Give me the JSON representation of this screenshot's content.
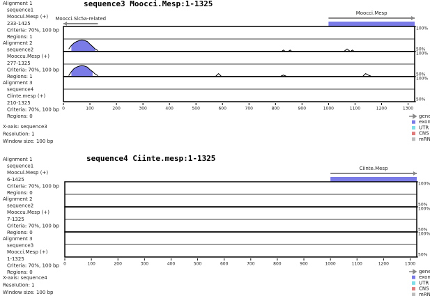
{
  "chart_data": [
    {
      "type": "vista",
      "title": "sequence3 Moocci.Mesp:1-1325",
      "xlim": [
        0,
        1325
      ],
      "xticks": [
        0,
        100,
        200,
        300,
        400,
        500,
        600,
        700,
        800,
        900,
        1000,
        1100,
        1200,
        1300
      ],
      "ylim": [
        50,
        100
      ],
      "yticks": [
        {
          "value": 100,
          "label": "100%"
        },
        {
          "value": 50,
          "label": "50%"
        }
      ],
      "midline": 75,
      "genes": [
        {
          "name": "Moocci.Slc5a-related",
          "start": 0,
          "end": 130,
          "strand": "-"
        },
        {
          "name": "Moocci.Mesp",
          "start": 1000,
          "end": 1325,
          "strand": "+"
        }
      ],
      "exons": [
        {
          "start": 1000,
          "end": 1325
        }
      ],
      "alignments": [
        {
          "labels": [
            "Alignment 1",
            "sequence1",
            "Moocul.Mesp (+)",
            "233-1425",
            "Criteria: 70%, 100 bp",
            "Regions: 1"
          ],
          "x": [
            20,
            30,
            40,
            50,
            60,
            70,
            80,
            90,
            100,
            110,
            120,
            130,
            null,
            825,
            830,
            835,
            null,
            850,
            855,
            860,
            null,
            1060,
            1070,
            1080,
            null,
            1085,
            1090,
            1095
          ],
          "values": [
            55,
            62,
            67,
            70,
            72,
            73,
            72,
            70,
            65,
            60,
            55,
            52,
            null,
            51,
            53,
            51,
            null,
            51,
            53,
            51,
            null,
            51,
            55,
            51,
            null,
            51,
            53,
            51
          ],
          "regions": [
            {
              "start": 30,
              "end": 120
            }
          ]
        },
        {
          "labels": [
            "Alignment 2",
            "sequence2",
            "Mooccu.Mesp (+)",
            "277-1325",
            "Criteria: 70%, 100 bp",
            "Regions: 1"
          ],
          "x": [
            20,
            30,
            40,
            50,
            60,
            70,
            80,
            90,
            100,
            110,
            120,
            130,
            null,
            575,
            585,
            595,
            null,
            820,
            830,
            840,
            null,
            1130,
            1140,
            1150,
            1160
          ],
          "values": [
            52,
            60,
            66,
            69,
            71,
            72,
            71,
            69,
            64,
            60,
            55,
            52,
            null,
            51,
            56,
            51,
            null,
            51,
            53,
            51,
            null,
            51,
            56,
            53,
            51
          ],
          "regions": [
            {
              "start": 30,
              "end": 110
            }
          ]
        },
        {
          "labels": [
            "Alignment 3",
            "sequence4",
            "Ciinte.mesp (+)",
            "210-1325",
            "Criteria: 70%, 100 bp",
            "Regions: 0"
          ],
          "x": [],
          "values": [],
          "regions": []
        }
      ],
      "legend": [
        {
          "name": "gene",
          "color": "#888888"
        },
        {
          "name": "exon",
          "color": "#7b7be8"
        },
        {
          "name": "UTR",
          "color": "#7fdde8"
        },
        {
          "name": "CNS",
          "color": "#e07b7b"
        },
        {
          "name": "mRNA",
          "color": "#bbbbbb"
        }
      ],
      "footer": [
        "X-axis: sequence3",
        "Resolution: 1",
        "Window size: 100 bp"
      ]
    },
    {
      "type": "vista",
      "title": "sequence4 Ciinte.mesp:1-1325",
      "xlim": [
        0,
        1325
      ],
      "xticks": [
        0,
        100,
        200,
        300,
        400,
        500,
        600,
        700,
        800,
        900,
        1000,
        1100,
        1200,
        1300
      ],
      "ylim": [
        50,
        100
      ],
      "yticks": [
        {
          "value": 100,
          "label": "100%"
        },
        {
          "value": 50,
          "label": "50%"
        }
      ],
      "midline": 75,
      "genes": [
        {
          "name": "Ciinte.Mesp",
          "start": 1000,
          "end": 1325,
          "strand": "+"
        }
      ],
      "exons": [
        {
          "start": 1000,
          "end": 1325
        }
      ],
      "alignments": [
        {
          "labels": [
            "Alignment 1",
            "sequence1",
            "Moocul.Mesp (+)",
            "6-1425",
            "Criteria: 70%, 100 bp",
            "Regions: 0"
          ],
          "x": [],
          "values": [],
          "regions": []
        },
        {
          "labels": [
            "Alignment 2",
            "sequence2",
            "Mooccu.Mesp (+)",
            "7-1325",
            "Criteria: 70%, 100 bp",
            "Regions: 0"
          ],
          "x": [],
          "values": [],
          "regions": []
        },
        {
          "labels": [
            "Alignment 3",
            "sequence3",
            "Moocci.Mesp (+)",
            "1-1325",
            "Criteria: 70%, 100 bp",
            "Regions: 0"
          ],
          "x": [],
          "values": [],
          "regions": []
        }
      ],
      "legend": [
        {
          "name": "gene",
          "color": "#888888"
        },
        {
          "name": "exon",
          "color": "#7b7be8"
        },
        {
          "name": "UTR",
          "color": "#7fdde8"
        },
        {
          "name": "CNS",
          "color": "#e07b7b"
        },
        {
          "name": "mRNA",
          "color": "#bbbbbb"
        }
      ],
      "footer": [
        "X-axis: sequence4",
        "Resolution: 1",
        "Window size: 100 bp"
      ]
    }
  ]
}
